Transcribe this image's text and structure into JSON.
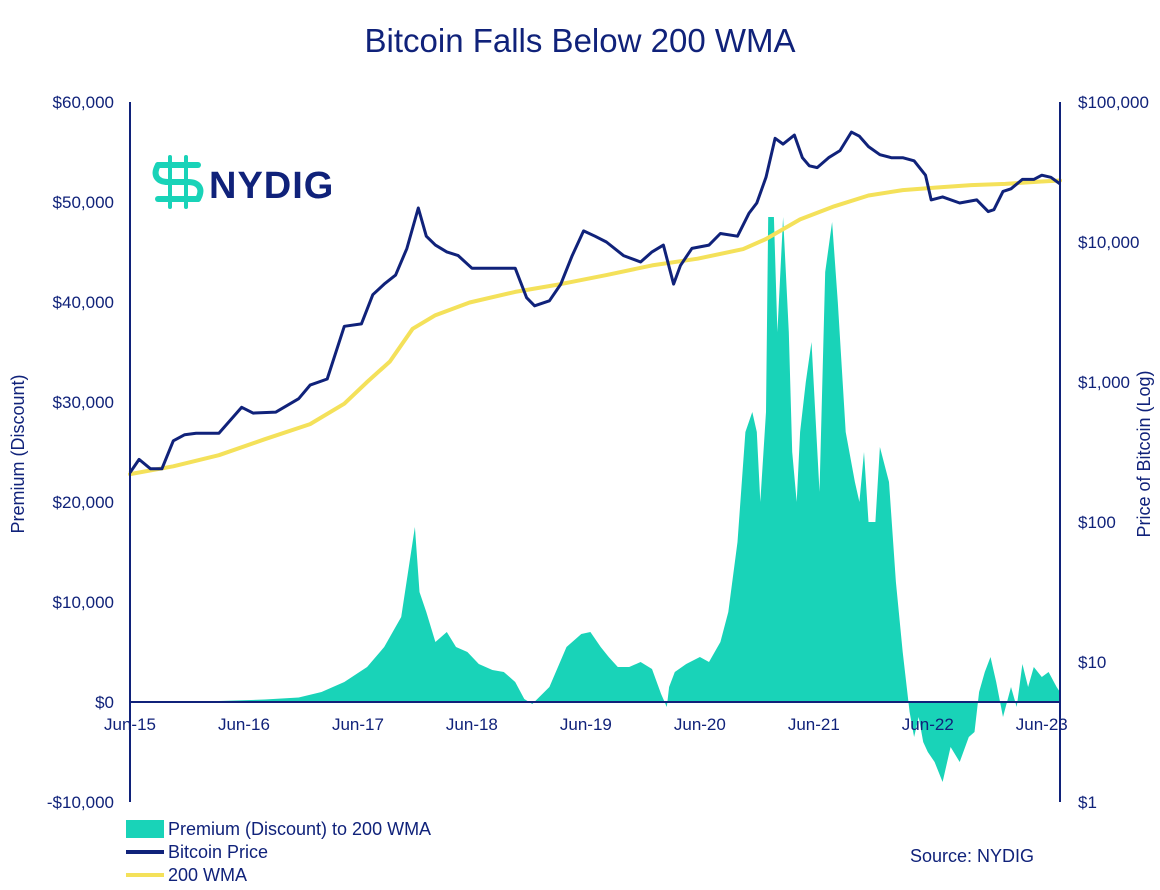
{
  "colors": {
    "navy": "#10227a",
    "teal": "#19d3b8",
    "yellow": "#f4e15a",
    "axis": "#10227a"
  },
  "logo": {
    "text": "NYDIG",
    "icon": "nydig-logo-icon"
  },
  "source": "Source: NYDIG",
  "chart_data": {
    "type": "area+line",
    "title": "Bitcoin Falls Below 200 WMA",
    "xlabel": "",
    "ylabel_left": "Premium (Discount)",
    "ylabel_right": "Price of Bitcoin (Log)",
    "x_range": [
      2015.42,
      2023.58
    ],
    "left_axis": {
      "ylim": [
        -10000,
        60000
      ],
      "ticks": [
        -10000,
        0,
        10000,
        20000,
        30000,
        40000,
        50000,
        60000
      ],
      "tick_labels": [
        "-$10,000",
        "$0",
        "$10,000",
        "$20,000",
        "$30,000",
        "$40,000",
        "$50,000",
        "$60,000"
      ]
    },
    "right_axis": {
      "scale": "log",
      "ylim": [
        1,
        100000
      ],
      "ticks": [
        1,
        10,
        100,
        1000,
        10000,
        100000
      ],
      "tick_labels": [
        "$1",
        "$10",
        "$100",
        "$1,000",
        "$10,000",
        "$100,000"
      ]
    },
    "x_ticks": [
      {
        "x": 2015.42,
        "label": "Jun-15"
      },
      {
        "x": 2016.42,
        "label": "Jun-16"
      },
      {
        "x": 2017.42,
        "label": "Jun-17"
      },
      {
        "x": 2018.42,
        "label": "Jun-18"
      },
      {
        "x": 2019.42,
        "label": "Jun-19"
      },
      {
        "x": 2020.42,
        "label": "Jun-20"
      },
      {
        "x": 2021.42,
        "label": "Jun-21"
      },
      {
        "x": 2022.42,
        "label": "Jun-22"
      },
      {
        "x": 2023.42,
        "label": "Jun-23"
      }
    ],
    "legend": [
      {
        "label": "Premium (Discount) to 200 WMA",
        "kind": "area",
        "color": "#19d3b8"
      },
      {
        "label": "Bitcoin Price",
        "kind": "line",
        "color": "#10227a"
      },
      {
        "label": "200 WMA",
        "kind": "line",
        "color": "#f4e15a"
      }
    ],
    "series": [
      {
        "name": "Premium (Discount) to 200 WMA",
        "axis": "left",
        "kind": "area",
        "x": [
          2015.42,
          2015.8,
          2016.2,
          2016.6,
          2016.9,
          2017.1,
          2017.3,
          2017.5,
          2017.65,
          2017.8,
          2017.92,
          2017.96,
          2018.02,
          2018.1,
          2018.2,
          2018.28,
          2018.38,
          2018.48,
          2018.6,
          2018.7,
          2018.8,
          2018.88,
          2018.95,
          2019.1,
          2019.25,
          2019.38,
          2019.46,
          2019.55,
          2019.62,
          2019.7,
          2019.8,
          2019.9,
          2020.0,
          2020.08,
          2020.13,
          2020.15,
          2020.2,
          2020.3,
          2020.42,
          2020.5,
          2020.6,
          2020.67,
          2020.75,
          2020.82,
          2020.88,
          2020.92,
          2020.95,
          2021.0,
          2021.02,
          2021.07,
          2021.1,
          2021.15,
          2021.2,
          2021.23,
          2021.27,
          2021.3,
          2021.35,
          2021.4,
          2021.47,
          2021.52,
          2021.58,
          2021.63,
          2021.7,
          2021.78,
          2021.82,
          2021.86,
          2021.9,
          2021.96,
          2022.0,
          2022.08,
          2022.14,
          2022.2,
          2022.26,
          2022.3,
          2022.34,
          2022.38,
          2022.42,
          2022.48,
          2022.55,
          2022.62,
          2022.7,
          2022.78,
          2022.83,
          2022.87,
          2022.92,
          2022.97,
          2023.02,
          2023.08,
          2023.15,
          2023.2,
          2023.25,
          2023.3,
          2023.35,
          2023.42,
          2023.48,
          2023.55,
          2023.58
        ],
        "values": [
          0,
          50,
          100,
          250,
          450,
          1000,
          2000,
          3500,
          5500,
          8500,
          17500,
          11000,
          9000,
          6000,
          7000,
          5500,
          5000,
          3800,
          3200,
          3000,
          2000,
          300,
          -200,
          1500,
          5500,
          6800,
          7000,
          5500,
          4500,
          3500,
          3500,
          4000,
          3300,
          800,
          -500,
          1500,
          3000,
          3800,
          4500,
          4000,
          6000,
          9000,
          16000,
          27000,
          29000,
          27000,
          20000,
          29000,
          48500,
          48500,
          37000,
          48500,
          37000,
          25000,
          20000,
          27000,
          32000,
          36000,
          21000,
          43000,
          48000,
          40000,
          27000,
          22000,
          20000,
          25000,
          18000,
          18000,
          25500,
          22000,
          12000,
          5000,
          -1000,
          -3500,
          -1500,
          -4000,
          -5000,
          -6000,
          -8000,
          -4500,
          -6000,
          -3500,
          -3000,
          1000,
          3000,
          4500,
          2000,
          -1500,
          1500,
          -500,
          3800,
          1500,
          3500,
          2500,
          3000,
          1500,
          1000
        ]
      },
      {
        "name": "Bitcoin Price",
        "axis": "right",
        "kind": "line",
        "x": [
          2015.42,
          2015.5,
          2015.6,
          2015.7,
          2015.8,
          2015.9,
          2016.0,
          2016.2,
          2016.4,
          2016.5,
          2016.7,
          2016.9,
          2017.0,
          2017.15,
          2017.3,
          2017.45,
          2017.55,
          2017.65,
          2017.75,
          2017.85,
          2017.95,
          2018.02,
          2018.1,
          2018.2,
          2018.3,
          2018.42,
          2018.55,
          2018.7,
          2018.8,
          2018.9,
          2018.97,
          2019.1,
          2019.2,
          2019.3,
          2019.4,
          2019.5,
          2019.6,
          2019.75,
          2019.9,
          2020.0,
          2020.1,
          2020.19,
          2020.25,
          2020.35,
          2020.5,
          2020.6,
          2020.75,
          2020.85,
          2020.92,
          2021.0,
          2021.08,
          2021.15,
          2021.25,
          2021.32,
          2021.38,
          2021.45,
          2021.55,
          2021.65,
          2021.75,
          2021.82,
          2021.9,
          2022.0,
          2022.1,
          2022.2,
          2022.3,
          2022.4,
          2022.45,
          2022.55,
          2022.7,
          2022.85,
          2022.95,
          2023.0,
          2023.08,
          2023.15,
          2023.25,
          2023.35,
          2023.42,
          2023.5,
          2023.58
        ],
        "values": [
          225,
          280,
          240,
          240,
          380,
          420,
          430,
          430,
          660,
          600,
          610,
          760,
          950,
          1050,
          2500,
          2600,
          4200,
          5000,
          5800,
          9000,
          17500,
          11000,
          9500,
          8500,
          8000,
          6500,
          6500,
          6500,
          6500,
          4000,
          3500,
          3800,
          5000,
          8000,
          12000,
          11000,
          10000,
          8000,
          7200,
          8500,
          9500,
          5000,
          6800,
          9000,
          9500,
          11500,
          11000,
          16000,
          19000,
          29000,
          55000,
          50000,
          58000,
          40000,
          35000,
          34000,
          40000,
          45000,
          61000,
          57000,
          48000,
          42000,
          40000,
          40000,
          38000,
          30000,
          20000,
          21000,
          19000,
          20000,
          16500,
          17000,
          23000,
          24000,
          28000,
          28000,
          30000,
          29000,
          26000
        ]
      },
      {
        "name": "200 WMA",
        "axis": "right",
        "kind": "line",
        "x": [
          2015.42,
          2015.8,
          2016.2,
          2016.6,
          2017.0,
          2017.3,
          2017.5,
          2017.7,
          2017.9,
          2018.1,
          2018.4,
          2018.8,
          2019.2,
          2019.6,
          2020.0,
          2020.4,
          2020.8,
          2021.0,
          2021.3,
          2021.6,
          2021.9,
          2022.2,
          2022.5,
          2022.8,
          2023.1,
          2023.4,
          2023.58
        ],
        "values": [
          220,
          250,
          300,
          390,
          500,
          700,
          1000,
          1400,
          2400,
          3000,
          3700,
          4400,
          5000,
          5800,
          6800,
          7600,
          8900,
          10500,
          14500,
          18000,
          21500,
          23500,
          24500,
          25500,
          26000,
          27000,
          27500
        ]
      }
    ]
  }
}
